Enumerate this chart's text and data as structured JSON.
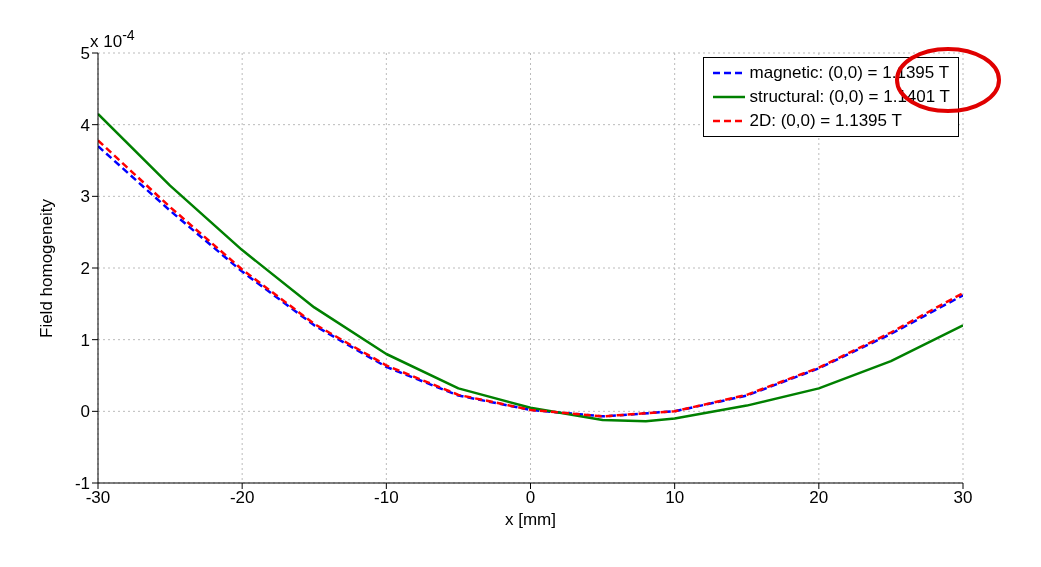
{
  "chart_data": {
    "type": "line",
    "xlabel": "x [mm]",
    "ylabel": "Field homogeneity",
    "annotations": [
      "x 10$^{-4}$"
    ],
    "xlim": [
      -30,
      30
    ],
    "xticks": [
      -30,
      -20,
      -10,
      0,
      10,
      20,
      30
    ],
    "ylim": [
      -1,
      5
    ],
    "yticks": [
      -1,
      0,
      1,
      2,
      3,
      4,
      5
    ],
    "grid": true,
    "legend": "top right",
    "marker": "none",
    "series": [
      {
        "name": "magnetic: (0,0) = 1.1395 T",
        "color": "#0000ff",
        "line_style": "dashed",
        "x": [
          -30,
          -25,
          -20,
          -15,
          -10,
          -5,
          0,
          5,
          10,
          15,
          20,
          25,
          30
        ],
        "values": [
          3.7,
          2.8,
          1.95,
          1.2,
          0.62,
          0.22,
          0.02,
          -0.07,
          0.0,
          0.22,
          0.6,
          1.08,
          1.62
        ]
      },
      {
        "name": "structural: (0,0) = 1.1401 T",
        "color": "#008000",
        "line_style": "solid",
        "x": [
          -30,
          -25,
          -20,
          -15,
          -10,
          -5,
          0,
          5,
          8,
          10,
          15,
          20,
          25,
          30
        ],
        "values": [
          4.15,
          3.15,
          2.25,
          1.45,
          0.8,
          0.32,
          0.05,
          -0.12,
          -0.14,
          -0.1,
          0.08,
          0.32,
          0.7,
          1.2
        ]
      },
      {
        "name": "2D: (0,0) = 1.1395 T",
        "color": "#ff0000",
        "line_style": "dashed",
        "x": [
          -30,
          -25,
          -20,
          -15,
          -10,
          -5,
          0,
          5,
          10,
          15,
          20,
          25,
          30
        ],
        "values": [
          3.78,
          2.85,
          1.98,
          1.22,
          0.64,
          0.23,
          0.02,
          -0.07,
          0.0,
          0.23,
          0.61,
          1.1,
          1.65
        ]
      }
    ]
  }
}
